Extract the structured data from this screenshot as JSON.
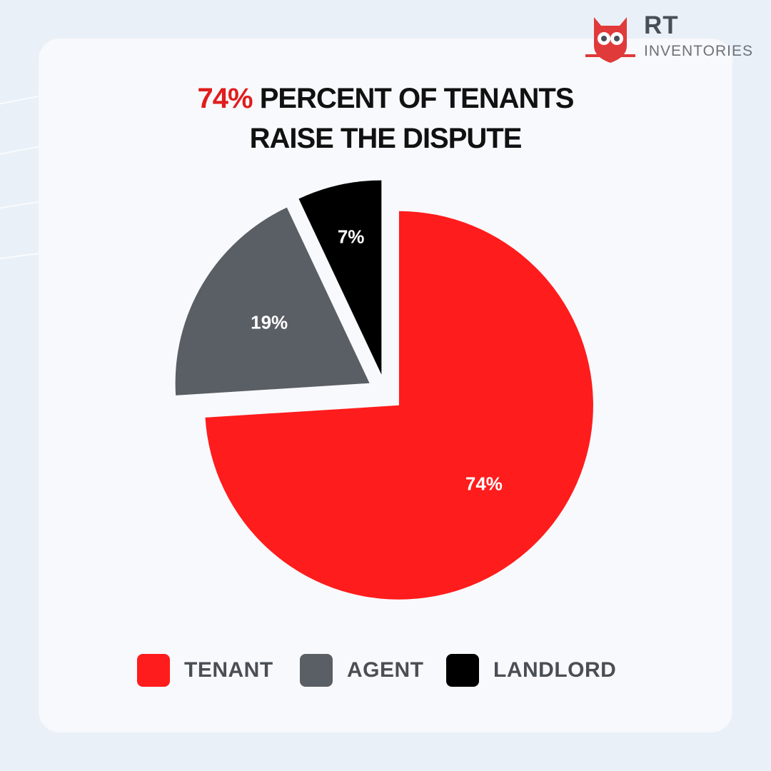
{
  "brand": {
    "name": "RT",
    "subtitle": "INVENTORIES",
    "logo_icon": "owl-icon",
    "colors": {
      "primary": "#e03a3a",
      "text": "#4a4e55"
    }
  },
  "headline": {
    "accent": "74%",
    "rest_line1": " PERCENT OF TENANTS",
    "line2": "RAISE THE DISPUTE",
    "accent_color": "#e01d1d"
  },
  "chart_data": {
    "type": "pie",
    "title": "74% PERCENT OF TENANTS RAISE THE DISPUTE",
    "categories": [
      "TENANT",
      "AGENT",
      "LANDLORD"
    ],
    "values": [
      74,
      19,
      7
    ],
    "labels": [
      "74%",
      "19%",
      "7%"
    ],
    "colors": [
      "#ff1c1c",
      "#5a5e65",
      "#000000"
    ],
    "legend_position": "bottom"
  }
}
